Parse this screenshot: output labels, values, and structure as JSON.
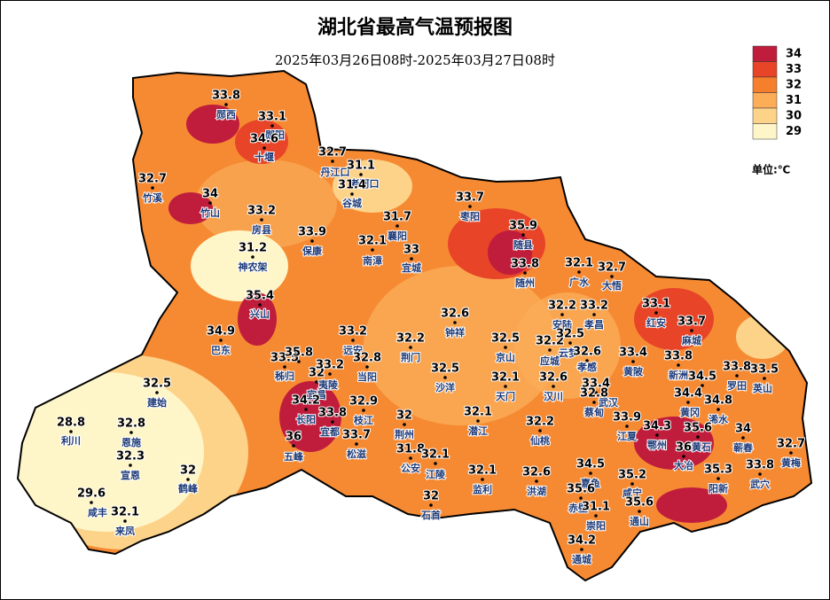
{
  "header": {
    "title": "湖北省最高气温预报图",
    "subtitle": "2025年03月26日08时-2025年03月27日08时"
  },
  "legend": {
    "levels": [
      {
        "value": 34,
        "color": "#c01d3c"
      },
      {
        "value": 33,
        "color": "#e84428"
      },
      {
        "value": 32,
        "color": "#f57f2d"
      },
      {
        "value": 31,
        "color": "#fbad58"
      },
      {
        "value": 30,
        "color": "#fdd38a"
      },
      {
        "value": 29,
        "color": "#fef6c9"
      }
    ],
    "unit": "单位:℃"
  },
  "stations": [
    {
      "name": "郧西",
      "value": 33.8
    },
    {
      "name": "郧阳",
      "value": 33.1
    },
    {
      "name": "十堰",
      "value": 34.6
    },
    {
      "name": "丹江口",
      "value": 32.7
    },
    {
      "name": "老河口",
      "value": 31.1
    },
    {
      "name": "谷城",
      "value": 31.4
    },
    {
      "name": "竹溪",
      "value": 32.7
    },
    {
      "name": "竹山",
      "value": 34
    },
    {
      "name": "房县",
      "value": 33.2
    },
    {
      "name": "保康",
      "value": 33.9
    },
    {
      "name": "神农架",
      "value": 31.2
    },
    {
      "name": "襄阳",
      "value": 31.7
    },
    {
      "name": "南漳",
      "value": 32.1
    },
    {
      "name": "宜城",
      "value": 33
    },
    {
      "name": "枣阳",
      "value": 33.7
    },
    {
      "name": "随县",
      "value": 35.9
    },
    {
      "name": "随州",
      "value": 33.8
    },
    {
      "name": "广水",
      "value": 32.1
    },
    {
      "name": "大悟",
      "value": 32.7
    },
    {
      "name": "兴山",
      "value": 35.4
    },
    {
      "name": "巴东",
      "value": 34.9
    },
    {
      "name": "远安",
      "value": 33.2
    },
    {
      "name": "钟祥",
      "value": 32.6
    },
    {
      "name": "荆门",
      "value": 32.2
    },
    {
      "name": "京山",
      "value": 32.5
    },
    {
      "name": "安陆",
      "value": 32.2
    },
    {
      "name": "孝昌",
      "value": 33.2
    },
    {
      "name": "红安",
      "value": 33.1
    },
    {
      "name": "麻城",
      "value": 33.7
    },
    {
      "name": "应城",
      "value": 32.2
    },
    {
      "name": "云梦",
      "value": 32.5
    },
    {
      "name": "孝感",
      "value": 32.6
    },
    {
      "name": "黄陂",
      "value": 33.4
    },
    {
      "name": "新洲",
      "value": 33.8
    },
    {
      "name": "秭归",
      "value": 33.5
    },
    {
      "name": null,
      "value": 35.8
    },
    {
      "name": "宜昌",
      "value": 32
    },
    {
      "name": "夷陵",
      "value": 33.2
    },
    {
      "name": "当阳",
      "value": 32.8
    },
    {
      "name": "沙洋",
      "value": 32.5
    },
    {
      "name": "天门",
      "value": 32.1
    },
    {
      "name": "汉川",
      "value": 32.6
    },
    {
      "name": "武汉",
      "value": 33.4
    },
    {
      "name": "蔡甸",
      "value": 32.8
    },
    {
      "name": "罗田",
      "value": 33.8
    },
    {
      "name": "英山",
      "value": 33.5
    },
    {
      "name": null,
      "value": 34.5
    },
    {
      "name": "黄冈",
      "value": 34.4
    },
    {
      "name": "浠水",
      "value": 34.8
    },
    {
      "name": "建始",
      "value": 32.5
    },
    {
      "name": "长阳",
      "value": 34.2
    },
    {
      "name": "枝江",
      "value": 32.9
    },
    {
      "name": "宜都",
      "value": 33.8
    },
    {
      "name": "五峰",
      "value": 36
    },
    {
      "name": "松滋",
      "value": 33.7
    },
    {
      "name": "荆州",
      "value": 32
    },
    {
      "name": "潜江",
      "value": 32.1
    },
    {
      "name": "仙桃",
      "value": 32.2
    },
    {
      "name": "江夏",
      "value": 33.9
    },
    {
      "name": "鄂州",
      "value": 34.3
    },
    {
      "name": "黄石",
      "value": 35.6
    },
    {
      "name": "大冶",
      "value": 36
    },
    {
      "name": "蕲春",
      "value": 34
    },
    {
      "name": "黄梅",
      "value": 32.7
    },
    {
      "name": "利川",
      "value": 28.8
    },
    {
      "name": "恩施",
      "value": 32.8
    },
    {
      "name": "宣恩",
      "value": 32.3
    },
    {
      "name": "鹤峰",
      "value": 32
    },
    {
      "name": "公安",
      "value": 31.8
    },
    {
      "name": "江陵",
      "value": 32.1
    },
    {
      "name": "监利",
      "value": 32.1
    },
    {
      "name": "洪湖",
      "value": 32.6
    },
    {
      "name": "嘉鱼",
      "value": 34.5
    },
    {
      "name": "咸宁",
      "value": 35.2
    },
    {
      "name": "阳新",
      "value": 35.3
    },
    {
      "name": "武穴",
      "value": 33.8
    },
    {
      "name": "赤壁",
      "value": 35.6
    },
    {
      "name": "崇阳",
      "value": 31.1
    },
    {
      "name": "通山",
      "value": 35.6
    },
    {
      "name": "石首",
      "value": 32
    },
    {
      "name": "咸丰",
      "value": 29.6
    },
    {
      "name": "来凤",
      "value": 32.1
    },
    {
      "name": "通城",
      "value": 34.2
    }
  ]
}
